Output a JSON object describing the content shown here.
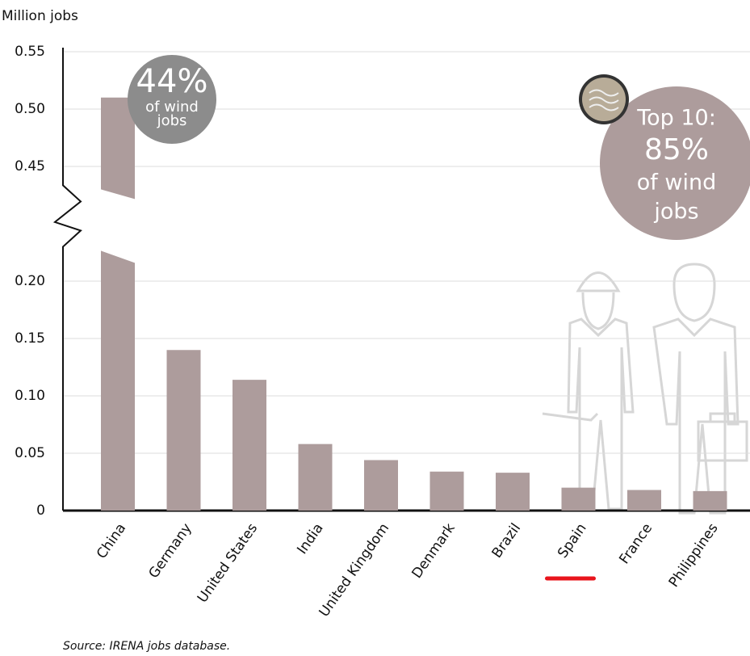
{
  "chart_data": {
    "type": "bar",
    "y_axis_label": "Million jobs",
    "source": "Source: IRENA jobs database.",
    "categories": [
      "China",
      "Germany",
      "United States",
      "India",
      "United Kingdom",
      "Denmark",
      "Brazil",
      "Spain",
      "France",
      "Philippines"
    ],
    "values": [
      0.51,
      0.14,
      0.114,
      0.058,
      0.044,
      0.034,
      0.033,
      0.02,
      0.018,
      0.017
    ],
    "color": "#ad9c9c",
    "ylim": [
      0,
      0.55
    ],
    "y_break": [
      0.23,
      0.43
    ],
    "yticks": [
      0,
      0.05,
      {
        "value": 0.1,
        "label": "0.10"
      },
      0.15,
      {
        "value": 0.2,
        "label": "0.20"
      },
      0.45,
      {
        "value": 0.5,
        "label": "0.50"
      },
      0.55
    ],
    "grid": true,
    "highlight_category": "Spain",
    "annotations": [
      {
        "lines": [
          "44%",
          "of wind",
          "jobs"
        ],
        "color": "#8c8c8c"
      },
      {
        "lines": [
          "Top 10:",
          "85%",
          "of wind",
          "jobs"
        ],
        "color": "#ad9c9c"
      }
    ]
  }
}
